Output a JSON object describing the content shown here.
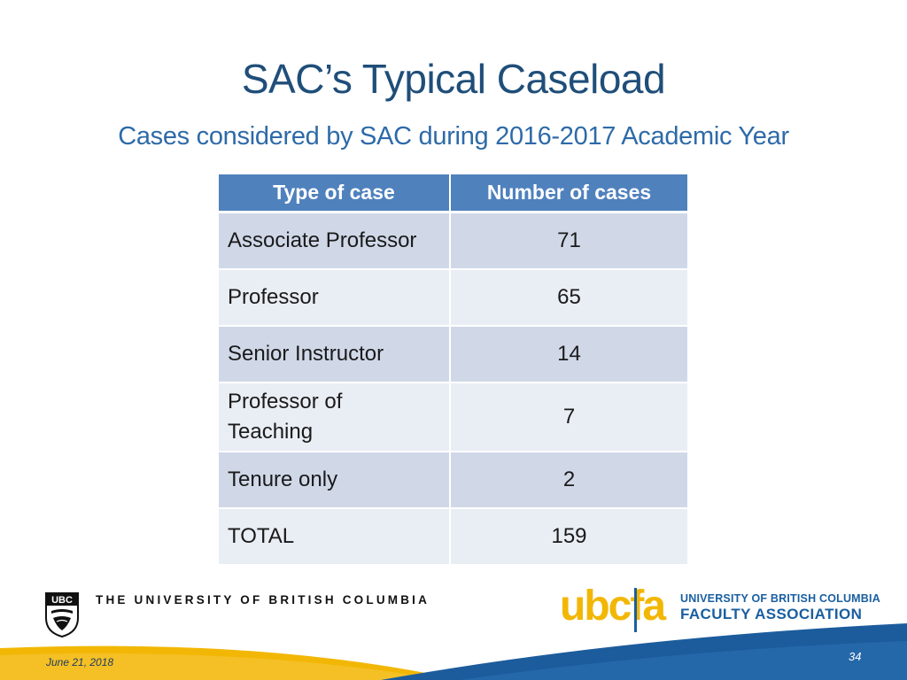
{
  "slide": {
    "title": "SAC’s Typical Caseload",
    "subtitle": "Cases considered by SAC during 2016-2017 Academic Year"
  },
  "table": {
    "headers": [
      "Type of case",
      "Number of cases"
    ],
    "rows": [
      {
        "type": "Associate Professor",
        "count": "71"
      },
      {
        "type": "Professor",
        "count": "65"
      },
      {
        "type": "Senior Instructor",
        "count": "14"
      },
      {
        "type": "Professor of Teaching",
        "type_line1": "Professor of",
        "type_line2": "Teaching",
        "count": "7"
      },
      {
        "type": "Tenure only",
        "count": "2"
      },
      {
        "type": "TOTAL",
        "count": "159"
      }
    ]
  },
  "footer": {
    "ubc_wordmark": "THE UNIVERSITY OF BRITISH COLUMBIA",
    "ubc_crest_text": "UBC",
    "fa_logo_text": "ubcfa",
    "fa_line1": "UNIVERSITY OF BRITISH COLUMBIA",
    "fa_line2": "FACULTY ASSOCIATION",
    "date": "June 21, 2018",
    "page_number": "34"
  },
  "colors": {
    "title": "#1f4e79",
    "header_bg": "#4f81bd",
    "row_dark": "#d0d8e8",
    "row_light": "#e9edf4",
    "swoosh_gold": "#f2b705",
    "swoosh_blue": "#1c5c9c"
  }
}
